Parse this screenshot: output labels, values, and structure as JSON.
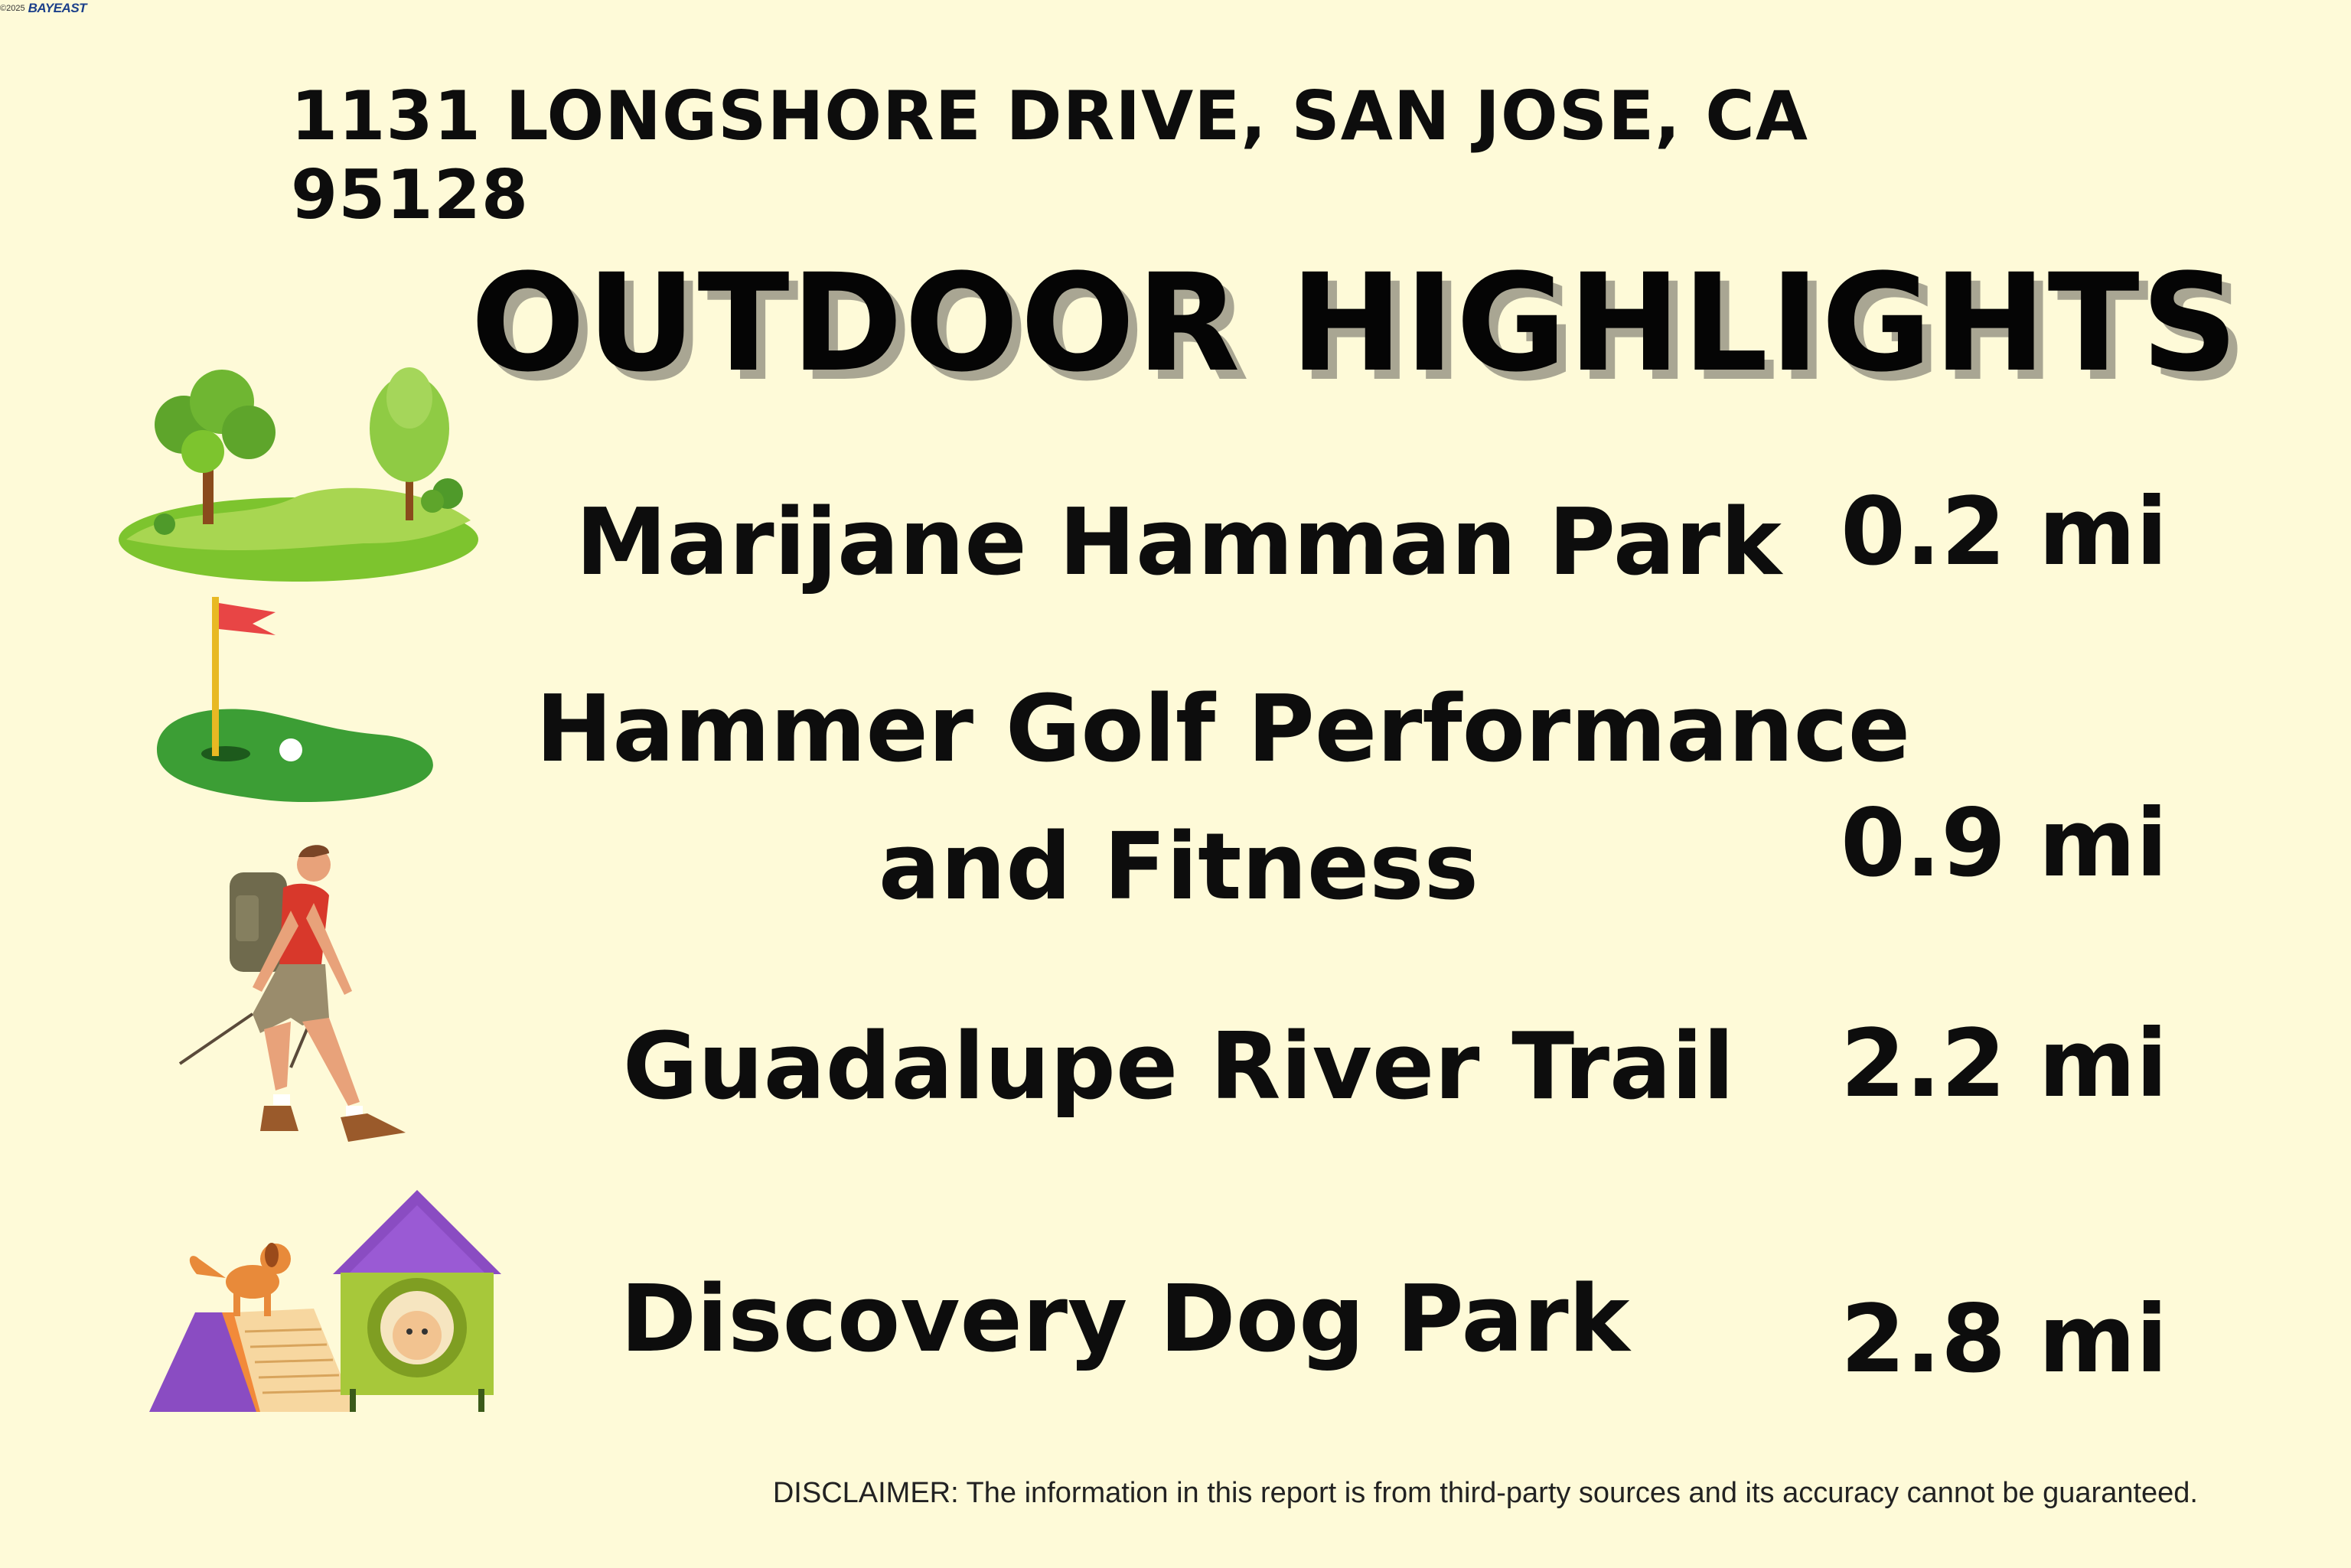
{
  "watermark": {
    "copyright": "©2025",
    "brand": "BAYEAST"
  },
  "address": "1131 LONGSHORE DRIVE, SAN JOSE, CA 95128",
  "title": "OUTDOOR HIGHLIGHTS",
  "highlights": [
    {
      "name": "Marijane Hamman Park",
      "distance": "0.2 mi",
      "icon": "park-icon"
    },
    {
      "name_line1": "Hammer Golf Performance",
      "name_line2": "and Fitness",
      "distance": "0.9 mi",
      "icon": "golf-icon"
    },
    {
      "name": "Guadalupe River Trail",
      "distance": "2.2 mi",
      "icon": "hiker-icon"
    },
    {
      "name": "Discovery Dog Park",
      "distance": "2.8 mi",
      "icon": "dog-park-icon"
    }
  ],
  "disclaimer": "DISCLAIMER: The information in this report is from third-party sources and its accuracy cannot be guaranteed.",
  "colors": {
    "background": "#fefad8",
    "text": "#0d0d0d",
    "title_shadow": "#a9a693"
  }
}
